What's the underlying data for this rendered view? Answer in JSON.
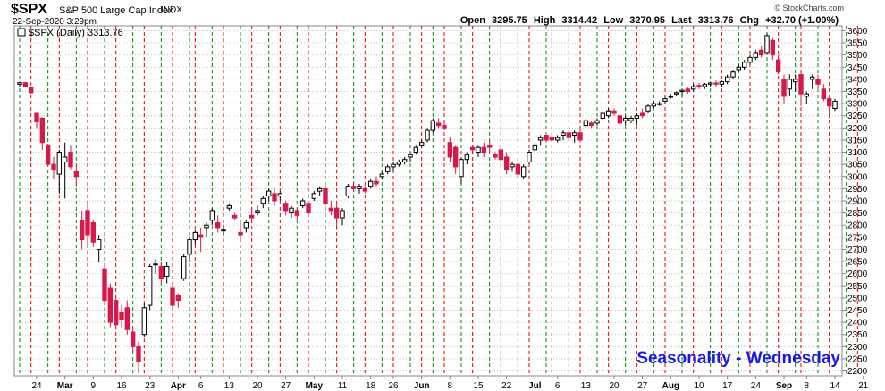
{
  "header": {
    "ticker": "$SPX",
    "description": "S&P 500 Large Cap Index",
    "exchange": "INDX",
    "datetime": "22-Sep-2020 3:29pm",
    "open_label": "Open",
    "open": "3295.75",
    "high_label": "High",
    "high": "3314.42",
    "low_label": "Low",
    "low": "3270.95",
    "last_label": "Last",
    "last": "3313.76",
    "chg_label": "Chg",
    "chg": "+32.70 (+1.00%)",
    "brand": "© StockCharts.com"
  },
  "legend": {
    "text": "$SPX (Daily) 3313.76"
  },
  "annotation": {
    "text": "Seasonality - Wednesday",
    "color": "#1a1adc"
  },
  "colors": {
    "up": "#000000",
    "down": "#d7194a",
    "wednesday_line": "#008800",
    "friday_line": "#dd0000",
    "grid": "#c8c8c8"
  },
  "chart_data": {
    "type": "candlestick",
    "title": "$SPX (Daily)",
    "ylim": [
      2180,
      3620
    ],
    "y_ticks": [
      2200,
      2250,
      2300,
      2350,
      2400,
      2450,
      2500,
      2550,
      2600,
      2650,
      2700,
      2750,
      2800,
      2850,
      2900,
      2950,
      3000,
      3050,
      3100,
      3150,
      3200,
      3250,
      3300,
      3350,
      3400,
      3450,
      3500,
      3550,
      3600
    ],
    "x_ticks": [
      "24",
      "Mar",
      "9",
      "16",
      "23",
      "Apr",
      "6",
      "13",
      "20",
      "27",
      "May",
      "11",
      "18",
      "26",
      "Jun",
      "8",
      "15",
      "22",
      "Jul",
      "6",
      "13",
      "20",
      "27",
      "Aug",
      "10",
      "17",
      "24",
      "Sep",
      "8",
      "14",
      "21"
    ],
    "x_tick_bars": [
      3,
      8,
      13,
      18,
      23,
      28,
      32,
      37,
      42,
      47,
      52,
      57,
      62,
      66,
      71,
      76,
      81,
      86,
      91,
      95,
      100,
      105,
      110,
      115,
      120,
      125,
      130,
      135,
      139,
      144,
      149
    ],
    "wednesday_bars": [
      0,
      5,
      10,
      15,
      20,
      25,
      30,
      34,
      39,
      44,
      49,
      54,
      59,
      64,
      69,
      73,
      78,
      83,
      88,
      93,
      97,
      102,
      107,
      112,
      117,
      122,
      127,
      132,
      137,
      141,
      146
    ],
    "friday_bars": [
      2,
      7,
      12,
      17,
      22,
      27,
      31,
      36,
      41,
      46,
      51,
      56,
      61,
      66,
      71,
      75,
      80,
      85,
      90,
      94,
      99,
      104,
      109,
      114,
      119,
      124,
      129,
      134,
      138,
      143,
      148
    ],
    "candles": [
      [
        3380,
        3390,
        3370,
        3386
      ],
      [
        3386,
        3390,
        3368,
        3372
      ],
      [
        3365,
        3370,
        3340,
        3345
      ],
      [
        3260,
        3262,
        3200,
        3225
      ],
      [
        3240,
        3245,
        3110,
        3140
      ],
      [
        3130,
        3135,
        3040,
        3050
      ],
      [
        3050,
        3080,
        2990,
        3030
      ],
      [
        3010,
        3110,
        2930,
        3100
      ],
      [
        3060,
        3140,
        2910,
        3080
      ],
      [
        3100,
        3130,
        3030,
        3040
      ],
      [
        3020,
        3050,
        2960,
        3000
      ],
      [
        2820,
        2860,
        2700,
        2740
      ],
      [
        2860,
        2890,
        2710,
        2760
      ],
      [
        2810,
        2820,
        2710,
        2730
      ],
      [
        2700,
        2760,
        2650,
        2740
      ],
      [
        2620,
        2640,
        2470,
        2490
      ],
      [
        2540,
        2560,
        2380,
        2400
      ],
      [
        2490,
        2500,
        2370,
        2390
      ],
      [
        2440,
        2470,
        2380,
        2410
      ],
      [
        2460,
        2490,
        2350,
        2370
      ],
      [
        2360,
        2380,
        2280,
        2300
      ],
      [
        2300,
        2320,
        2190,
        2240
      ],
      [
        2350,
        2480,
        2340,
        2460
      ],
      [
        2470,
        2640,
        2450,
        2630
      ],
      [
        2640,
        2660,
        2600,
        2640
      ],
      [
        2630,
        2650,
        2560,
        2580
      ],
      [
        2590,
        2650,
        2560,
        2630
      ],
      [
        2540,
        2560,
        2450,
        2470
      ],
      [
        2510,
        2520,
        2460,
        2490
      ],
      [
        2580,
        2680,
        2570,
        2670
      ],
      [
        2680,
        2750,
        2650,
        2740
      ],
      [
        2740,
        2780,
        2720,
        2770
      ],
      [
        2760,
        2790,
        2690,
        2750
      ],
      [
        2790,
        2810,
        2750,
        2800
      ],
      [
        2820,
        2870,
        2800,
        2860
      ],
      [
        2810,
        2840,
        2770,
        2790
      ],
      [
        2780,
        2800,
        2760,
        2780
      ],
      [
        2870,
        2890,
        2860,
        2880
      ],
      [
        2840,
        2850,
        2820,
        2830
      ],
      [
        2770,
        2810,
        2730,
        2760
      ],
      [
        2790,
        2820,
        2770,
        2810
      ],
      [
        2840,
        2870,
        2810,
        2830
      ],
      [
        2850,
        2880,
        2840,
        2860
      ],
      [
        2890,
        2920,
        2870,
        2910
      ],
      [
        2920,
        2950,
        2900,
        2940
      ],
      [
        2930,
        2950,
        2880,
        2900
      ],
      [
        2920,
        2940,
        2900,
        2930
      ],
      [
        2890,
        2900,
        2840,
        2860
      ],
      [
        2850,
        2880,
        2830,
        2870
      ],
      [
        2860,
        2870,
        2820,
        2840
      ],
      [
        2880,
        2910,
        2870,
        2900
      ],
      [
        2890,
        2900,
        2840,
        2850
      ],
      [
        2910,
        2940,
        2900,
        2930
      ],
      [
        2940,
        2960,
        2920,
        2950
      ],
      [
        2950,
        2960,
        2880,
        2890
      ],
      [
        2870,
        2900,
        2840,
        2860
      ],
      [
        2870,
        2890,
        2780,
        2830
      ],
      [
        2830,
        2870,
        2800,
        2860
      ],
      [
        2920,
        2970,
        2910,
        2960
      ],
      [
        2960,
        2980,
        2940,
        2950
      ],
      [
        2950,
        2970,
        2930,
        2960
      ],
      [
        2950,
        2960,
        2930,
        2940
      ],
      [
        2960,
        2990,
        2950,
        2980
      ],
      [
        2980,
        3000,
        2960,
        2970
      ],
      [
        3000,
        3020,
        2990,
        3010
      ],
      [
        3020,
        3050,
        3010,
        3040
      ],
      [
        3040,
        3060,
        3020,
        3050
      ],
      [
        3050,
        3070,
        3040,
        3060
      ],
      [
        3060,
        3080,
        3050,
        3070
      ],
      [
        3080,
        3100,
        3060,
        3090
      ],
      [
        3100,
        3130,
        3090,
        3120
      ],
      [
        3130,
        3150,
        3120,
        3140
      ],
      [
        3150,
        3200,
        3140,
        3190
      ],
      [
        3190,
        3240,
        3180,
        3230
      ],
      [
        3220,
        3240,
        3200,
        3210
      ],
      [
        3210,
        3220,
        3190,
        3200
      ],
      [
        3140,
        3160,
        3060,
        3080
      ],
      [
        3120,
        3130,
        3010,
        3040
      ],
      [
        3000,
        3080,
        2970,
        3070
      ],
      [
        3070,
        3100,
        3050,
        3090
      ],
      [
        3120,
        3130,
        3090,
        3110
      ],
      [
        3100,
        3130,
        3080,
        3120
      ],
      [
        3120,
        3140,
        3080,
        3100
      ],
      [
        3130,
        3150,
        3100,
        3120
      ],
      [
        3090,
        3100,
        3070,
        3080
      ],
      [
        3110,
        3130,
        3060,
        3070
      ],
      [
        3080,
        3100,
        3010,
        3030
      ],
      [
        3040,
        3060,
        3020,
        3050
      ],
      [
        3050,
        3070,
        2990,
        3010
      ],
      [
        3000,
        3050,
        2990,
        3040
      ],
      [
        3060,
        3110,
        3050,
        3100
      ],
      [
        3110,
        3140,
        3100,
        3130
      ],
      [
        3150,
        3170,
        3130,
        3160
      ],
      [
        3170,
        3180,
        3140,
        3150
      ],
      [
        3160,
        3170,
        3140,
        3150
      ],
      [
        3150,
        3170,
        3140,
        3160
      ],
      [
        3170,
        3190,
        3150,
        3180
      ],
      [
        3180,
        3190,
        3150,
        3160
      ],
      [
        3170,
        3190,
        3140,
        3180
      ],
      [
        3180,
        3200,
        3140,
        3150
      ],
      [
        3210,
        3240,
        3200,
        3230
      ],
      [
        3220,
        3230,
        3200,
        3210
      ],
      [
        3220,
        3240,
        3210,
        3230
      ],
      [
        3240,
        3270,
        3230,
        3260
      ],
      [
        3250,
        3280,
        3240,
        3270
      ],
      [
        3270,
        3280,
        3250,
        3260
      ],
      [
        3250,
        3260,
        3210,
        3220
      ],
      [
        3230,
        3250,
        3210,
        3240
      ],
      [
        3230,
        3250,
        3220,
        3240
      ],
      [
        3240,
        3260,
        3210,
        3250
      ],
      [
        3260,
        3280,
        3240,
        3250
      ],
      [
        3270,
        3300,
        3260,
        3290
      ],
      [
        3290,
        3310,
        3280,
        3300
      ],
      [
        3300,
        3310,
        3290,
        3300
      ],
      [
        3310,
        3330,
        3300,
        3320
      ],
      [
        3330,
        3340,
        3320,
        3330
      ],
      [
        3340,
        3350,
        3330,
        3345
      ],
      [
        3350,
        3360,
        3330,
        3355
      ],
      [
        3360,
        3370,
        3340,
        3350
      ],
      [
        3360,
        3380,
        3350,
        3370
      ],
      [
        3375,
        3385,
        3360,
        3370
      ],
      [
        3370,
        3385,
        3360,
        3380
      ],
      [
        3380,
        3390,
        3370,
        3385
      ],
      [
        3385,
        3395,
        3370,
        3380
      ],
      [
        3380,
        3395,
        3370,
        3390
      ],
      [
        3390,
        3420,
        3380,
        3410
      ],
      [
        3410,
        3440,
        3400,
        3430
      ],
      [
        3440,
        3460,
        3430,
        3450
      ],
      [
        3450,
        3480,
        3440,
        3470
      ],
      [
        3470,
        3500,
        3460,
        3490
      ],
      [
        3490,
        3520,
        3480,
        3510
      ],
      [
        3520,
        3540,
        3490,
        3500
      ],
      [
        3510,
        3590,
        3500,
        3580
      ],
      [
        3560,
        3570,
        3480,
        3500
      ],
      [
        3480,
        3500,
        3420,
        3430
      ],
      [
        3400,
        3420,
        3300,
        3330
      ],
      [
        3360,
        3420,
        3330,
        3400
      ],
      [
        3390,
        3420,
        3350,
        3400
      ],
      [
        3420,
        3430,
        3290,
        3340
      ],
      [
        3330,
        3350,
        3300,
        3340
      ],
      [
        3400,
        3420,
        3360,
        3410
      ],
      [
        3400,
        3420,
        3360,
        3380
      ],
      [
        3360,
        3380,
        3310,
        3320
      ],
      [
        3320,
        3330,
        3240,
        3290
      ],
      [
        3280,
        3320,
        3270,
        3310
      ]
    ]
  }
}
